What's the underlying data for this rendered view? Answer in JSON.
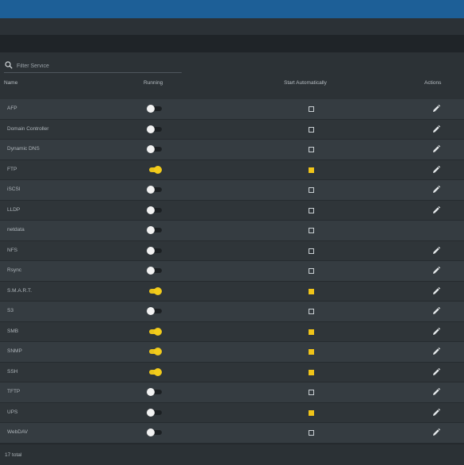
{
  "filter": {
    "placeholder": "Filter Service",
    "icon": "search-icon"
  },
  "table": {
    "columns": {
      "name": "Name",
      "running": "Running",
      "start": "Start Automatically",
      "actions": "Actions"
    },
    "rows": [
      {
        "name": "AFP",
        "running": false,
        "start": false,
        "edit": true
      },
      {
        "name": "Domain Controller",
        "running": false,
        "start": false,
        "edit": true
      },
      {
        "name": "Dynamic DNS",
        "running": false,
        "start": false,
        "edit": true
      },
      {
        "name": "FTP",
        "running": true,
        "start": true,
        "edit": true
      },
      {
        "name": "iSCSI",
        "running": false,
        "start": false,
        "edit": true
      },
      {
        "name": "LLDP",
        "running": false,
        "start": false,
        "edit": true
      },
      {
        "name": "netdata",
        "running": false,
        "start": false,
        "edit": false
      },
      {
        "name": "NFS",
        "running": false,
        "start": false,
        "edit": true
      },
      {
        "name": "Rsync",
        "running": false,
        "start": false,
        "edit": true
      },
      {
        "name": "S.M.A.R.T.",
        "running": true,
        "start": true,
        "edit": true
      },
      {
        "name": "S3",
        "running": false,
        "start": false,
        "edit": true
      },
      {
        "name": "SMB",
        "running": true,
        "start": true,
        "edit": true
      },
      {
        "name": "SNMP",
        "running": true,
        "start": true,
        "edit": true
      },
      {
        "name": "SSH",
        "running": true,
        "start": true,
        "edit": true
      },
      {
        "name": "TFTP",
        "running": false,
        "start": false,
        "edit": true
      },
      {
        "name": "UPS",
        "running": false,
        "start": true,
        "edit": true
      },
      {
        "name": "WebDAV",
        "running": false,
        "start": false,
        "edit": true
      }
    ]
  },
  "footer": {
    "total": "17 total"
  },
  "colors": {
    "header_bar": "#1d5f97",
    "accent_yellow": "#f0c419"
  }
}
